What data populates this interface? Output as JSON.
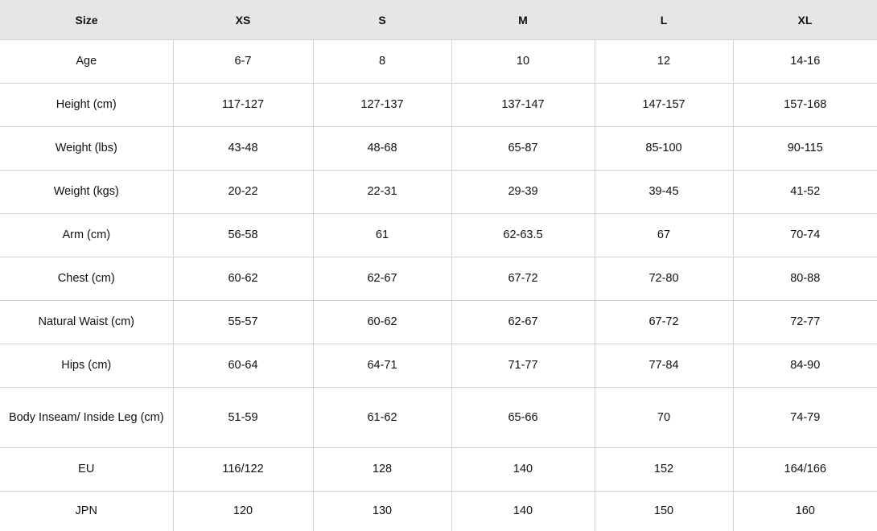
{
  "headers": [
    "Size",
    "XS",
    "S",
    "M",
    "L",
    "XL"
  ],
  "rows": [
    [
      "Age",
      "6-7",
      "8",
      "10",
      "12",
      "14-16"
    ],
    [
      "Height (cm)",
      "117-127",
      "127-137",
      "137-147",
      "147-157",
      "157-168"
    ],
    [
      "Weight (lbs)",
      "43-48",
      "48-68",
      "65-87",
      "85-100",
      "90-115"
    ],
    [
      "Weight (kgs)",
      "20-22",
      "22-31",
      "29-39",
      "39-45",
      "41-52"
    ],
    [
      "Arm (cm)",
      "56-58",
      "61",
      "62-63.5",
      "67",
      "70-74"
    ],
    [
      "Chest (cm)",
      "60-62",
      "62-67",
      "67-72",
      "72-80",
      "80-88"
    ],
    [
      "Natural Waist (cm)",
      "55-57",
      "60-62",
      "62-67",
      "67-72",
      "72-77"
    ],
    [
      "Hips (cm)",
      "60-64",
      "64-71",
      "71-77",
      "77-84",
      "84-90"
    ],
    [
      "Body Inseam/ Inside Leg (cm)",
      "51-59",
      "61-62",
      "65-66",
      "70",
      "74-79"
    ],
    [
      "EU",
      "116/122",
      "128",
      "140",
      "152",
      "164/166"
    ],
    [
      "JPN",
      "120",
      "130",
      "140",
      "150",
      "160"
    ]
  ]
}
